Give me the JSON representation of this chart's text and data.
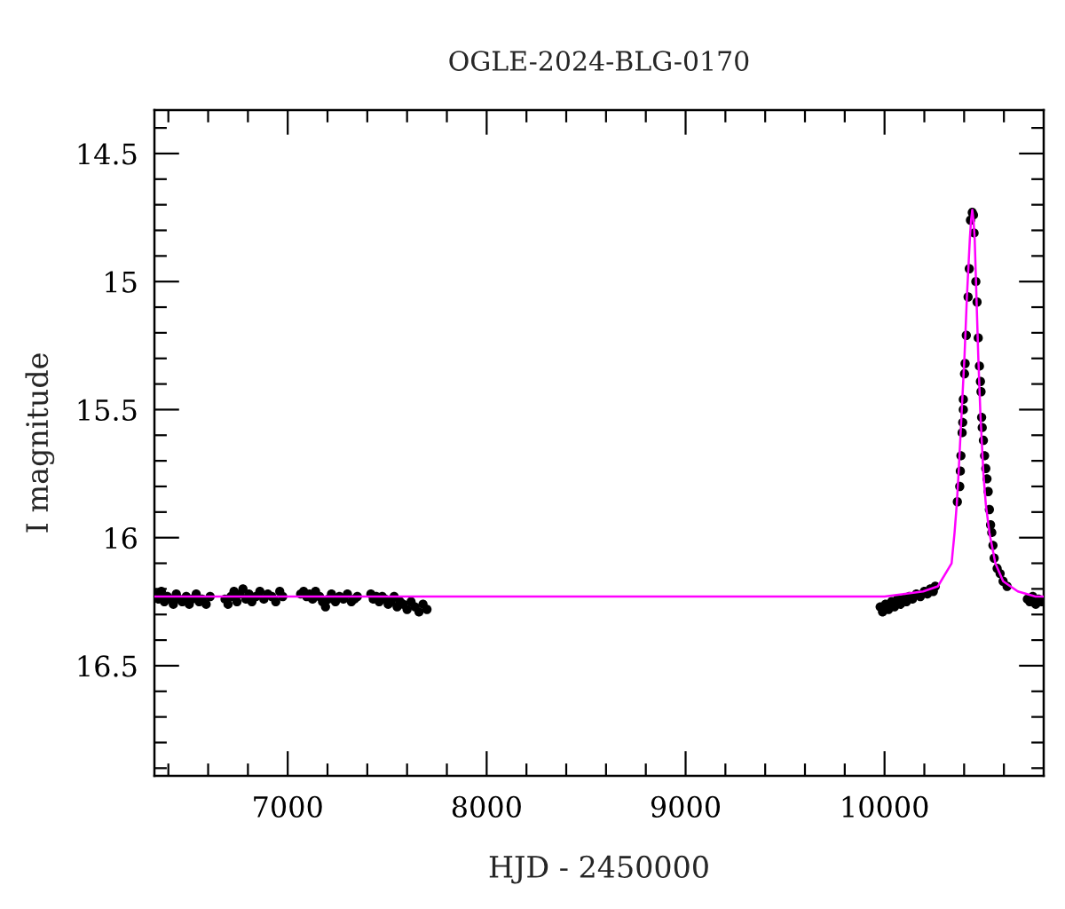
{
  "chart_data": {
    "type": "scatter",
    "title": "OGLE-2024-BLG-0170",
    "xlabel": "HJD - 2450000",
    "ylabel": "I magnitude",
    "xlim": [
      6330,
      10800
    ],
    "ylim": [
      16.93,
      14.33
    ],
    "xticks": [
      {
        "value": 6400,
        "label": null
      },
      {
        "value": 6600,
        "label": null
      },
      {
        "value": 6800,
        "label": null
      },
      7000,
      {
        "value": 7200,
        "label": null
      },
      {
        "value": 7400,
        "label": null
      },
      {
        "value": 7600,
        "label": null
      },
      {
        "value": 7800,
        "label": null
      },
      8000,
      {
        "value": 8200,
        "label": null
      },
      {
        "value": 8400,
        "label": null
      },
      {
        "value": 8600,
        "label": null
      },
      {
        "value": 8800,
        "label": null
      },
      9000,
      {
        "value": 9200,
        "label": null
      },
      {
        "value": 9400,
        "label": null
      },
      {
        "value": 9600,
        "label": null
      },
      {
        "value": 9800,
        "label": null
      },
      10000,
      {
        "value": 10200,
        "label": null
      },
      {
        "value": 10400,
        "label": null
      },
      {
        "value": 10600,
        "label": null
      }
    ],
    "yticks": [
      {
        "value": 14.4,
        "label": null
      },
      14.5,
      {
        "value": 14.6,
        "label": null
      },
      {
        "value": 14.7,
        "label": null
      },
      {
        "value": 14.8,
        "label": null
      },
      {
        "value": 14.9,
        "label": null
      },
      15,
      {
        "value": 15.1,
        "label": null
      },
      {
        "value": 15.2,
        "label": null
      },
      {
        "value": 15.3,
        "label": null
      },
      {
        "value": 15.4,
        "label": null
      },
      15.5,
      {
        "value": 15.6,
        "label": null
      },
      {
        "value": 15.7,
        "label": null
      },
      {
        "value": 15.8,
        "label": null
      },
      {
        "value": 15.9,
        "label": null
      },
      16,
      {
        "value": 16.1,
        "label": null
      },
      {
        "value": 16.2,
        "label": null
      },
      {
        "value": 16.3,
        "label": null
      },
      {
        "value": 16.4,
        "label": null
      },
      16.5,
      {
        "value": 16.6,
        "label": null
      },
      {
        "value": 16.7,
        "label": null
      },
      {
        "value": 16.8,
        "label": null
      },
      {
        "value": 16.9,
        "label": null
      }
    ],
    "series": [
      {
        "marker": "circle",
        "color": "#000000",
        "x": [
          6335,
          6350,
          6365,
          6380,
          6395,
          6410,
          6425,
          6440,
          6455,
          6470,
          6490,
          6505,
          6520,
          6540,
          6555,
          6570,
          6590,
          6610,
          6685,
          6700,
          6715,
          6730,
          6745,
          6760,
          6775,
          6790,
          6805,
          6820,
          6840,
          6860,
          6880,
          6900,
          6920,
          6940,
          6960,
          6975,
          7065,
          7080,
          7095,
          7110,
          7125,
          7140,
          7160,
          7175,
          7190,
          7205,
          7220,
          7240,
          7260,
          7280,
          7300,
          7320,
          7335,
          7350,
          7418,
          7430,
          7445,
          7460,
          7475,
          7490,
          7505,
          7520,
          7535,
          7550,
          7565,
          7580,
          7600,
          7620,
          7640,
          7660,
          7680,
          7700,
          9978,
          9990,
          10005,
          10020,
          10035,
          10050,
          10065,
          10080,
          10095,
          10110,
          10125,
          10140,
          10160,
          10180,
          10200,
          10215,
          10230,
          10245,
          10255,
          10366,
          10378,
          10381,
          10384,
          10390,
          10393,
          10396,
          10396,
          10402,
          10405,
          10411,
          10420,
          10426,
          10432,
          10441,
          10447,
          10450,
          10459,
          10465,
          10471,
          10477,
          10482,
          10485,
          10488,
          10491,
          10497,
          10503,
          10509,
          10515,
          10521,
          10527,
          10533,
          10539,
          10545,
          10551,
          10566,
          10581,
          10596,
          10616,
          10718,
          10730,
          10745,
          10760,
          10775,
          10790
        ],
        "values": [
          16.22,
          16.24,
          16.21,
          16.25,
          16.23,
          16.24,
          16.26,
          16.22,
          16.24,
          16.25,
          16.23,
          16.26,
          16.24,
          16.22,
          16.25,
          16.24,
          16.26,
          16.23,
          16.24,
          16.26,
          16.23,
          16.21,
          16.25,
          16.22,
          16.2,
          16.24,
          16.22,
          16.25,
          16.23,
          16.21,
          16.24,
          16.22,
          16.23,
          16.25,
          16.21,
          16.23,
          16.22,
          16.21,
          16.23,
          16.22,
          16.24,
          16.21,
          16.23,
          16.25,
          16.27,
          16.24,
          16.22,
          16.25,
          16.23,
          16.24,
          16.22,
          16.25,
          16.24,
          16.23,
          16.22,
          16.24,
          16.23,
          16.25,
          16.23,
          16.24,
          16.26,
          16.25,
          16.23,
          16.27,
          16.25,
          16.26,
          16.28,
          16.25,
          16.27,
          16.29,
          16.26,
          16.28,
          16.27,
          16.29,
          16.26,
          16.28,
          16.25,
          16.27,
          16.24,
          16.26,
          16.24,
          16.25,
          16.23,
          16.24,
          16.22,
          16.23,
          16.21,
          16.22,
          16.2,
          16.21,
          16.19,
          15.86,
          15.8,
          15.74,
          15.68,
          15.59,
          15.55,
          15.5,
          15.46,
          15.36,
          15.32,
          15.21,
          15.06,
          14.95,
          14.76,
          14.73,
          14.74,
          14.81,
          15.0,
          15.08,
          15.22,
          15.33,
          15.39,
          15.43,
          15.53,
          15.57,
          15.62,
          15.68,
          15.73,
          15.77,
          15.82,
          15.89,
          15.95,
          15.98,
          16.03,
          16.08,
          16.12,
          16.14,
          16.17,
          16.19,
          16.24,
          16.25,
          16.23,
          16.26,
          16.24,
          16.25
        ]
      },
      {
        "type": "line",
        "color": "#ff00ff",
        "x": [
          6330,
          10000,
          10194,
          10268,
          10337,
          10352,
          10363,
          10372,
          10387,
          10402,
          10414,
          10429,
          10435,
          10441,
          10447,
          10453,
          10462,
          10471,
          10482,
          10497,
          10509,
          10527,
          10557,
          10596,
          10670,
          10759,
          10800
        ],
        "values": [
          16.23,
          16.23,
          16.21,
          16.19,
          16.1,
          15.98,
          15.87,
          15.75,
          15.52,
          15.29,
          15.06,
          14.83,
          14.76,
          14.72,
          14.76,
          14.83,
          15.06,
          15.29,
          15.52,
          15.75,
          15.87,
          15.98,
          16.1,
          16.17,
          16.21,
          16.23,
          16.23
        ]
      }
    ]
  }
}
